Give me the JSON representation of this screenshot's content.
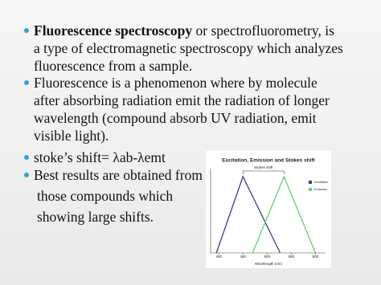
{
  "slide": {
    "bullets": [
      {
        "lead": "Fluorescence spectroscopy",
        "lines": [
          "or spectrofluorometry, is",
          "a type of electromagnetic spectroscopy which analyzes",
          "fluorescence from a sample."
        ]
      },
      {
        "lines": [
          "Fluorescence is a phenomenon where by molecule",
          "after absorbing radiation emit the radiation of longer",
          "wavelength (compound absorb UV radiation, emit",
          "visible light)."
        ]
      },
      {
        "lines": [
          "stoke’s shift= λab-λemt"
        ]
      },
      {
        "lines": [
          "Best results are obtained from",
          "those  compounds which",
          "showing large shifts."
        ]
      }
    ]
  },
  "chart_data": {
    "type": "line",
    "title": "Excitation, Emission and Stokes shift",
    "x_label": "Wavelength (nm)",
    "annotation": "Stokes shift",
    "xlim": [
      383,
      621
    ],
    "xticks": [
      400,
      450,
      500,
      550,
      600
    ],
    "ylim": [
      0,
      1
    ],
    "legend": "top-right",
    "series": [
      {
        "name": "Excitation",
        "color": "#3b3b9e",
        "x": [
          395,
          450,
          527
        ],
        "values": [
          0,
          0.95,
          0
        ]
      },
      {
        "name": "Emission",
        "color": "#5fd35f",
        "x": [
          470,
          535,
          600
        ],
        "values": [
          0,
          0.95,
          0
        ]
      }
    ]
  }
}
